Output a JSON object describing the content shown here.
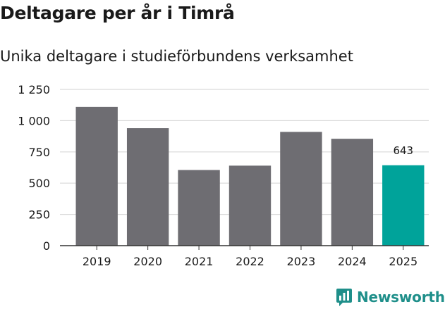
{
  "title": "Deltagare per år i Timrå",
  "subtitle": "Unika deltagare i studieförbundens verksamhet",
  "brand": {
    "name": "Newsworthy",
    "icon": "newsworthy-logo-icon",
    "color": "#1f8f8a"
  },
  "chart_data": {
    "type": "bar",
    "categories": [
      "2019",
      "2020",
      "2021",
      "2022",
      "2023",
      "2024",
      "2025"
    ],
    "values": [
      1110,
      940,
      605,
      640,
      910,
      855,
      643
    ],
    "value_labels": [
      "",
      "",
      "",
      "",
      "",
      "",
      "643"
    ],
    "colors": [
      "#6e6d72",
      "#6e6d72",
      "#6e6d72",
      "#6e6d72",
      "#6e6d72",
      "#6e6d72",
      "#00a39a"
    ],
    "ylim": [
      0,
      1250
    ],
    "yticks": [
      0,
      250,
      500,
      750,
      1000,
      1250
    ],
    "ytick_labels": [
      "0",
      "250",
      "500",
      "750",
      "1 000",
      "1 250"
    ],
    "grid": true,
    "xlabel": "",
    "ylabel": ""
  }
}
